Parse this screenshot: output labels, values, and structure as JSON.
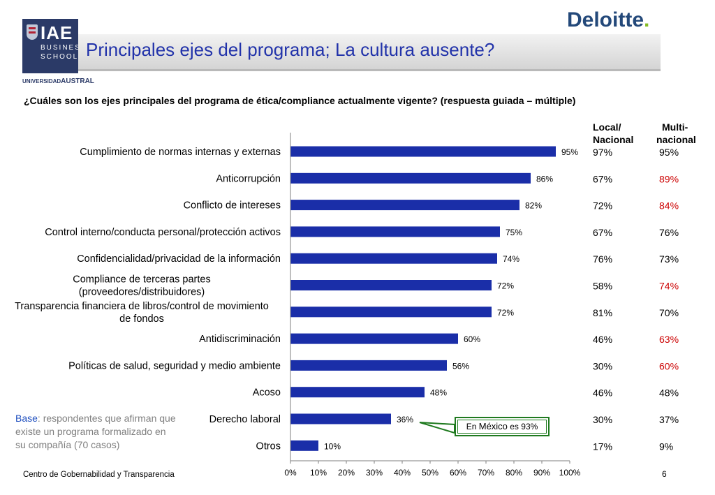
{
  "header": {
    "title": "Principales ejes del programa; La cultura ausente?",
    "question": "¿Cuáles son los ejes principales del programa de ética/compliance actualmente vigente? (respuesta guiada – múltiple)",
    "iae_logo": {
      "name": "IAE",
      "line1": "BUSINESS",
      "line2": "SCHOOL",
      "univ_prefix": "UNIVERSIDAD",
      "univ_name": "AUSTRAL"
    },
    "deloitte_logo": {
      "name": "Deloitte",
      "dot": "."
    }
  },
  "colors": {
    "bar": "#1a2ea8",
    "title": "#2233aa",
    "highlight": "#cc0000",
    "callout_border": "#1f7a1f",
    "base_label": "#1f4fbf"
  },
  "chart_data": {
    "type": "bar",
    "orientation": "horizontal",
    "categories": [
      [
        "Cumplimiento de normas internas y externas"
      ],
      [
        "Anticorrupción"
      ],
      [
        "Conflicto de intereses"
      ],
      [
        "Control interno/conducta personal/protección activos"
      ],
      [
        "Confidencialidad/privacidad de la información"
      ],
      [
        "Compliance de terceras partes",
        "(proveedores/distribuidores)"
      ],
      [
        "Transparencia financiera de libros/control de movimiento",
        "de fondos"
      ],
      [
        "Antidiscriminación"
      ],
      [
        "Políticas de salud, seguridad y medio ambiente"
      ],
      [
        "Acoso"
      ],
      [
        "Derecho laboral"
      ],
      [
        "Otros"
      ]
    ],
    "values": [
      95,
      86,
      82,
      75,
      74,
      72,
      72,
      60,
      56,
      48,
      36,
      10
    ],
    "value_labels": [
      "95%",
      "86%",
      "82%",
      "75%",
      "74%",
      "72%",
      "72%",
      "60%",
      "56%",
      "48%",
      "36%",
      "10%"
    ],
    "xlim": [
      0,
      100
    ],
    "x_ticks": [
      "0%",
      "10%",
      "20%",
      "30%",
      "40%",
      "50%",
      "60%",
      "70%",
      "80%",
      "90%",
      "100%"
    ],
    "grid": false,
    "legend": "none"
  },
  "table": {
    "local_header": [
      "Local/",
      "Nacional"
    ],
    "multi_header": [
      "Multi-",
      "nacional"
    ],
    "local_values": [
      "97%",
      "67%",
      "72%",
      "67%",
      "76%",
      "58%",
      "81%",
      "46%",
      "30%",
      "46%",
      "30%",
      "17%"
    ],
    "multi_values": [
      "95%",
      "89%",
      "84%",
      "76%",
      "73%",
      "74%",
      "70%",
      "63%",
      "60%",
      "48%",
      "37%",
      "9%"
    ],
    "multi_highlight": [
      false,
      true,
      true,
      false,
      false,
      true,
      false,
      true,
      true,
      false,
      false,
      false
    ]
  },
  "base_note": {
    "label": "Base",
    "text": ": respondentes que afirman que existe un programa formalizado en su compañía (70 casos)"
  },
  "callout": {
    "prefix": "En ",
    "country": "México",
    "suffix": " es 93%"
  },
  "footer": {
    "left": "Centro de Gobernabilidad y Transparencia",
    "page": "6"
  }
}
